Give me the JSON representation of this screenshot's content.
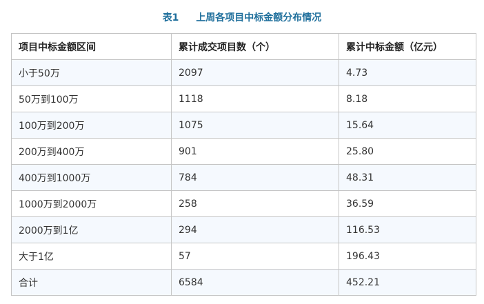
{
  "title": {
    "number": "表1",
    "text": "上周各项目中标金额分布情况"
  },
  "table": {
    "headers": [
      "项目中标金额区间",
      "累计成交项目数（个）",
      "累计中标金额（亿元）"
    ],
    "rows": [
      [
        "小于50万",
        "2097",
        "4.73"
      ],
      [
        "50万到100万",
        "1118",
        "8.18"
      ],
      [
        "100万到200万",
        "1075",
        "15.64"
      ],
      [
        "200万到400万",
        "901",
        "25.80"
      ],
      [
        "400万到1000万",
        "784",
        "48.31"
      ],
      [
        "1000万到2000万",
        "258",
        "36.59"
      ],
      [
        "2000万到1亿",
        "294",
        "116.53"
      ],
      [
        "大于1亿",
        "57",
        "196.43"
      ],
      [
        "合计",
        "6584",
        "452.21"
      ]
    ]
  }
}
